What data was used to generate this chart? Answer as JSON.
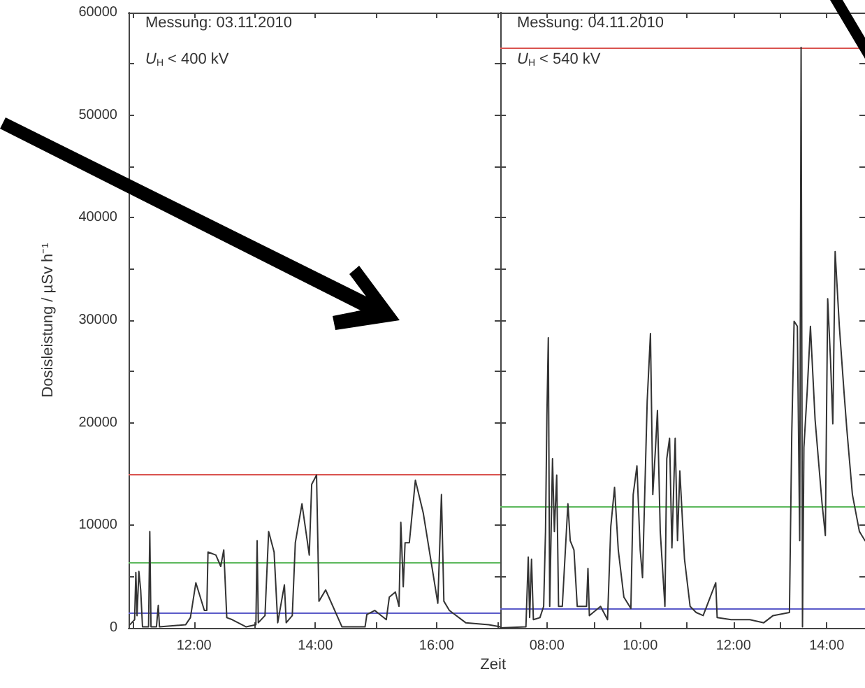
{
  "chart_data": [
    {
      "type": "line",
      "ylabel": "Dosisleistung / µSv h⁻¹",
      "xlabel": "Zeit",
      "annotations": [
        "Messung: 03.11.2010",
        "U$_{H}$ < 400 kV"
      ],
      "color": "#333333",
      "marker": "none",
      "line_style": "solid",
      "grid": false,
      "xlim": [
        10.92,
        17.05
      ],
      "xticks": [
        {
          "value": 11,
          "label": null
        },
        {
          "value": 12,
          "label": "12:00"
        },
        {
          "value": 13,
          "label": null
        },
        {
          "value": 14,
          "label": "14:00"
        },
        {
          "value": 15,
          "label": null
        },
        {
          "value": 16,
          "label": "16:00"
        },
        {
          "value": 17,
          "label": null
        }
      ],
      "ylim": [
        0,
        60000
      ],
      "yticks": [
        0,
        {
          "value": 5000,
          "label": null
        },
        10000,
        {
          "value": 15000,
          "label": null
        },
        20000,
        {
          "value": 25000,
          "label": null
        },
        30000,
        {
          "value": 35000,
          "label": null
        },
        40000,
        {
          "value": 45000,
          "label": null
        },
        50000,
        {
          "value": 55000,
          "label": null
        },
        60000
      ],
      "ref_lines": [
        {
          "axis": "y",
          "value": 15000,
          "color": "#d9534f"
        },
        {
          "axis": "y",
          "value": 6400,
          "color": "#5cb85c"
        },
        {
          "axis": "y",
          "value": 1500,
          "color": "#5b5bc8"
        }
      ],
      "x": [
        10.94,
        11.02,
        11.04,
        11.06,
        11.09,
        11.12,
        11.15,
        11.25,
        11.27,
        11.29,
        11.38,
        11.41,
        11.43,
        11.86,
        11.94,
        12.03,
        12.17,
        12.21,
        12.23,
        12.36,
        12.44,
        12.49,
        12.54,
        12.63,
        12.86,
        13.02,
        13.04,
        13.06,
        13.17,
        13.23,
        13.32,
        13.38,
        13.49,
        13.52,
        13.62,
        13.67,
        13.78,
        13.9,
        13.94,
        14.02,
        14.06,
        14.17,
        14.44,
        14.82,
        14.85,
        14.98,
        15.17,
        15.22,
        15.32,
        15.38,
        15.41,
        15.45,
        15.48,
        15.55,
        15.65,
        15.78,
        16.02,
        16.08,
        16.12,
        16.21,
        16.48,
        16.86,
        17.05
      ],
      "values": [
        300,
        800,
        5400,
        1200,
        5500,
        3700,
        100,
        100,
        9400,
        100,
        100,
        2200,
        100,
        300,
        1000,
        4400,
        1700,
        1700,
        7400,
        7100,
        6000,
        7600,
        1000,
        800,
        100,
        300,
        8500,
        500,
        1200,
        9400,
        7400,
        500,
        4200,
        500,
        1200,
        8300,
        12100,
        7100,
        14000,
        14900,
        2600,
        3700,
        100,
        100,
        1300,
        1700,
        800,
        3000,
        3500,
        2100,
        10300,
        4000,
        8300,
        8300,
        14400,
        11200,
        2400,
        13000,
        2600,
        1700,
        500,
        300,
        100
      ]
    },
    {
      "type": "line",
      "annotations": [
        "Messung: 04.11.2010",
        "U$_{H}$ < 540 kV"
      ],
      "color": "#333333",
      "marker": "none",
      "line_style": "solid",
      "grid": false,
      "tick_labels": "x",
      "xlim": [
        7,
        14.82
      ],
      "xticks": [
        {
          "value": 8,
          "label": "08:00"
        },
        {
          "value": 9,
          "label": null
        },
        {
          "value": 10,
          "label": "10:00"
        },
        {
          "value": 11,
          "label": null
        },
        {
          "value": 12,
          "label": "12:00"
        },
        {
          "value": 13,
          "label": null
        },
        {
          "value": 14,
          "label": "14:00"
        }
      ],
      "ylim": [
        0,
        60000
      ],
      "yticks": [
        0,
        {
          "value": 5000,
          "label": null
        },
        10000,
        {
          "value": 15000,
          "label": null
        },
        20000,
        {
          "value": 25000,
          "label": null
        },
        30000,
        {
          "value": 35000,
          "label": null
        },
        40000,
        {
          "value": 45000,
          "label": null
        },
        50000,
        {
          "value": 55000,
          "label": null
        },
        60000
      ],
      "ref_lines": [
        {
          "axis": "y",
          "value": 56600,
          "color": "#d9534f"
        },
        {
          "axis": "y",
          "value": 11800,
          "color": "#5cb85c"
        },
        {
          "axis": "y",
          "value": 1900,
          "color": "#5b5bc8"
        }
      ],
      "x": [
        7.0,
        7.55,
        7.6,
        7.63,
        7.67,
        7.71,
        7.85,
        7.93,
        7.97,
        8.0,
        8.03,
        8.06,
        8.12,
        8.16,
        8.21,
        8.25,
        8.33,
        8.45,
        8.5,
        8.58,
        8.65,
        8.85,
        8.88,
        8.91,
        9.15,
        9.3,
        9.37,
        9.45,
        9.53,
        9.65,
        9.8,
        9.85,
        9.93,
        10.0,
        10.05,
        10.15,
        10.22,
        10.27,
        10.33,
        10.37,
        10.43,
        10.53,
        10.57,
        10.63,
        10.68,
        10.75,
        10.8,
        10.85,
        10.95,
        11.07,
        11.2,
        11.35,
        11.62,
        11.65,
        11.95,
        12.35,
        12.65,
        12.85,
        13.2,
        13.25,
        13.3,
        13.37,
        13.42,
        13.45,
        13.48,
        13.51,
        13.58,
        13.65,
        13.75,
        13.9,
        13.97,
        14.02,
        14.08,
        14.13,
        14.18,
        14.27,
        14.37,
        14.43,
        14.55,
        14.7,
        14.82
      ],
      "values": [
        0,
        100,
        6900,
        1000,
        6700,
        800,
        1000,
        2100,
        9400,
        20800,
        28300,
        2100,
        16500,
        9400,
        14900,
        2100,
        2100,
        12100,
        8500,
        7600,
        2100,
        2100,
        5800,
        1200,
        2100,
        800,
        9900,
        13700,
        7600,
        3000,
        1900,
        13000,
        15800,
        7600,
        4900,
        22100,
        28700,
        13000,
        17700,
        21200,
        9400,
        2100,
        16500,
        18500,
        7800,
        18500,
        8500,
        15300,
        6700,
        2100,
        1500,
        1200,
        4400,
        1000,
        800,
        800,
        500,
        1200,
        1500,
        19000,
        29900,
        29400,
        8500,
        56600,
        100,
        17600,
        23000,
        29400,
        20300,
        12100,
        9000,
        32100,
        26200,
        19900,
        36700,
        29400,
        23000,
        19400,
        13000,
        9400,
        8500
      ]
    }
  ]
}
